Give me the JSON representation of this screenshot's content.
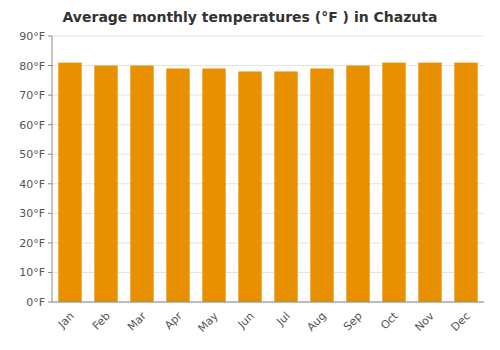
{
  "chart_data": {
    "type": "bar",
    "title": "Average monthly temperatures (°F ) in Chazuta",
    "categories": [
      "Jan",
      "Feb",
      "Mar",
      "Apr",
      "May",
      "Jun",
      "Jul",
      "Aug",
      "Sep",
      "Oct",
      "Nov",
      "Dec"
    ],
    "values": [
      81,
      80,
      80,
      79,
      79,
      78,
      78,
      79,
      80,
      81,
      81,
      81
    ],
    "color": "#E89000",
    "ylim": [
      0,
      90
    ],
    "yticks": [
      {
        "value": 0,
        "label": "0°F"
      },
      {
        "value": 10,
        "label": "10°F"
      },
      {
        "value": 20,
        "label": "20°F"
      },
      {
        "value": 30,
        "label": "30°F"
      },
      {
        "value": 40,
        "label": "40°F"
      },
      {
        "value": 50,
        "label": "50°F"
      },
      {
        "value": 60,
        "label": "60°F"
      },
      {
        "value": 70,
        "label": "70°F"
      },
      {
        "value": 80,
        "label": "80°F"
      },
      {
        "value": 90,
        "label": "90°F"
      }
    ],
    "grid": true
  }
}
